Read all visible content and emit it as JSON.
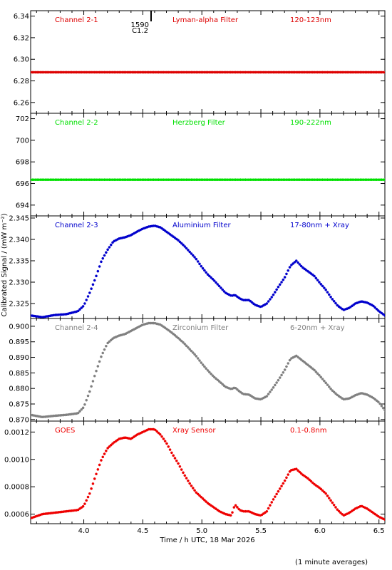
{
  "chart_data": {
    "type": "scatter",
    "xlabel": "Time / h UTC, 18 Mar 2026",
    "ylabel": "Calibrated Signal / (mW m⁻²)",
    "footnote": "(1 minute averages)",
    "xlim": [
      3.55,
      6.55
    ],
    "xticks": [
      4.0,
      4.5,
      5.0,
      5.5,
      6.0,
      6.5
    ],
    "xtick_labels": [
      "4.0",
      "4.5",
      "5.0",
      "5.5",
      "6.0",
      "6.5"
    ],
    "flare_marker": {
      "x": 4.57,
      "labels": [
        "1590",
        "C1.2"
      ]
    },
    "colors": {
      "ch21": "#dd0000",
      "ch22": "#00e000",
      "ch23": "#0000cc",
      "ch24": "#808080",
      "goes": "#ee0000"
    },
    "panels": [
      {
        "id": "ch21",
        "color": "#dd0000",
        "name": "Channel 2-1",
        "filter": "Lyman-alpha Filter",
        "band": "120-123nm",
        "ylim": [
          6.25,
          6.345
        ],
        "yticks": [
          6.26,
          6.28,
          6.3,
          6.32,
          6.34
        ],
        "ytick_labels": [
          "6.26",
          "6.28",
          "6.30",
          "6.32",
          "6.34"
        ],
        "x": [
          3.55,
          6.55
        ],
        "y": [
          6.288,
          6.288
        ]
      },
      {
        "id": "ch22",
        "color": "#00e000",
        "name": "Channel 2-2",
        "filter": "Herzberg Filter",
        "band": "190-222nm",
        "ylim": [
          693.0,
          702.5
        ],
        "yticks": [
          694,
          696,
          698,
          700,
          702
        ],
        "ytick_labels": [
          "694",
          "696",
          "698",
          "700",
          "702"
        ],
        "x": [
          3.55,
          6.55
        ],
        "y": [
          696.35,
          696.35
        ]
      },
      {
        "id": "ch23",
        "color": "#0000cc",
        "name": "Channel 2-3",
        "filter": "Aluminium Filter",
        "band": "17-80nm + Xray",
        "ylim": [
          2.3215,
          2.3455
        ],
        "yticks": [
          2.325,
          2.33,
          2.335,
          2.34,
          2.345
        ],
        "ytick_labels": [
          "2.325",
          "2.330",
          "2.335",
          "2.340",
          "2.345"
        ],
        "x": [
          3.55,
          3.65,
          3.75,
          3.85,
          3.95,
          4.0,
          4.05,
          4.1,
          4.15,
          4.2,
          4.25,
          4.3,
          4.35,
          4.4,
          4.45,
          4.5,
          4.55,
          4.6,
          4.65,
          4.7,
          4.75,
          4.8,
          4.85,
          4.9,
          4.95,
          5.0,
          5.05,
          5.1,
          5.15,
          5.2,
          5.25,
          5.28,
          5.32,
          5.35,
          5.4,
          5.45,
          5.5,
          5.55,
          5.6,
          5.65,
          5.7,
          5.75,
          5.8,
          5.85,
          5.9,
          5.95,
          6.0,
          6.05,
          6.1,
          6.15,
          6.2,
          6.25,
          6.3,
          6.35,
          6.4,
          6.45,
          6.5,
          6.55
        ],
        "y": [
          2.3222,
          2.3218,
          2.3223,
          2.3225,
          2.3232,
          2.3245,
          2.3275,
          2.331,
          2.335,
          2.3375,
          2.3395,
          2.3402,
          2.3405,
          2.341,
          2.3418,
          2.3425,
          2.343,
          2.3432,
          2.3428,
          2.3418,
          2.3408,
          2.3398,
          2.3385,
          2.337,
          2.3355,
          2.3335,
          2.3318,
          2.3305,
          2.329,
          2.3275,
          2.3268,
          2.327,
          2.3262,
          2.3258,
          2.3258,
          2.3247,
          2.3242,
          2.325,
          2.3268,
          2.329,
          2.331,
          2.3338,
          2.335,
          2.3335,
          2.3325,
          2.3315,
          2.3298,
          2.3282,
          2.3262,
          2.3245,
          2.3235,
          2.324,
          2.325,
          2.3255,
          2.3252,
          2.3245,
          2.3232,
          2.3222
        ]
      },
      {
        "id": "ch24",
        "color": "#808080",
        "name": "Channel 2-4",
        "filter": "Zirconium Filter",
        "band": "6-20nm + Xray",
        "ylim": [
          0.8695,
          0.9025
        ],
        "yticks": [
          0.87,
          0.875,
          0.88,
          0.885,
          0.89,
          0.895,
          0.9
        ],
        "ytick_labels": [
          "0.870",
          "0.875",
          "0.880",
          "0.885",
          "0.890",
          "0.895",
          "0.900"
        ],
        "x": [
          3.55,
          3.65,
          3.75,
          3.85,
          3.95,
          4.0,
          4.05,
          4.1,
          4.15,
          4.2,
          4.25,
          4.3,
          4.35,
          4.4,
          4.45,
          4.5,
          4.55,
          4.6,
          4.65,
          4.7,
          4.75,
          4.8,
          4.85,
          4.9,
          4.95,
          5.0,
          5.05,
          5.1,
          5.15,
          5.2,
          5.25,
          5.28,
          5.32,
          5.35,
          5.4,
          5.45,
          5.5,
          5.55,
          5.6,
          5.65,
          5.7,
          5.75,
          5.8,
          5.85,
          5.9,
          5.95,
          6.0,
          6.05,
          6.1,
          6.15,
          6.2,
          6.25,
          6.3,
          6.35,
          6.4,
          6.45,
          6.5,
          6.55
        ],
        "y": [
          0.8715,
          0.8708,
          0.8712,
          0.8715,
          0.872,
          0.874,
          0.879,
          0.885,
          0.8905,
          0.8945,
          0.8962,
          0.897,
          0.8975,
          0.8985,
          0.8995,
          0.9005,
          0.901,
          0.901,
          0.9005,
          0.8992,
          0.8978,
          0.8962,
          0.8945,
          0.8925,
          0.8905,
          0.888,
          0.8858,
          0.8838,
          0.8822,
          0.8805,
          0.8798,
          0.8803,
          0.879,
          0.8782,
          0.878,
          0.8768,
          0.8765,
          0.8775,
          0.88,
          0.8828,
          0.8858,
          0.8895,
          0.8905,
          0.889,
          0.8875,
          0.886,
          0.884,
          0.8818,
          0.8795,
          0.8778,
          0.8765,
          0.8768,
          0.8778,
          0.8785,
          0.878,
          0.877,
          0.8755,
          0.873
        ]
      },
      {
        "id": "goes",
        "color": "#ee0000",
        "name": "GOES",
        "filter": "Xray Sensor",
        "band": "0.1-0.8nm",
        "ylim": [
          0.00053,
          0.00128
        ],
        "yticks": [
          0.0006,
          0.0008,
          0.001,
          0.0012
        ],
        "ytick_labels": [
          "0.0006",
          "0.0008",
          "0.0010",
          "0.0012"
        ],
        "x": [
          3.55,
          3.65,
          3.75,
          3.85,
          3.95,
          4.0,
          4.05,
          4.1,
          4.15,
          4.2,
          4.25,
          4.3,
          4.35,
          4.4,
          4.45,
          4.5,
          4.55,
          4.6,
          4.65,
          4.7,
          4.75,
          4.8,
          4.85,
          4.9,
          4.95,
          5.0,
          5.05,
          5.1,
          5.15,
          5.2,
          5.25,
          5.28,
          5.32,
          5.35,
          5.4,
          5.45,
          5.5,
          5.55,
          5.6,
          5.65,
          5.7,
          5.75,
          5.8,
          5.85,
          5.9,
          5.95,
          6.0,
          6.05,
          6.1,
          6.15,
          6.2,
          6.25,
          6.3,
          6.35,
          6.4,
          6.45,
          6.5,
          6.55
        ],
        "y": [
          0.00057,
          0.0006,
          0.00061,
          0.00062,
          0.00063,
          0.00066,
          0.00075,
          0.00088,
          0.001,
          0.00108,
          0.00112,
          0.00115,
          0.00116,
          0.00115,
          0.00118,
          0.0012,
          0.00122,
          0.00122,
          0.00118,
          0.00112,
          0.00104,
          0.00097,
          0.00089,
          0.00082,
          0.00076,
          0.00072,
          0.00068,
          0.00065,
          0.00062,
          0.0006,
          0.00059,
          0.00067,
          0.00063,
          0.00062,
          0.00062,
          0.0006,
          0.00059,
          0.00062,
          0.0007,
          0.00077,
          0.00084,
          0.00092,
          0.00093,
          0.00089,
          0.00086,
          0.00082,
          0.00079,
          0.00075,
          0.00069,
          0.00063,
          0.00059,
          0.00061,
          0.00064,
          0.00066,
          0.00064,
          0.00061,
          0.00058,
          0.00056
        ]
      }
    ]
  }
}
